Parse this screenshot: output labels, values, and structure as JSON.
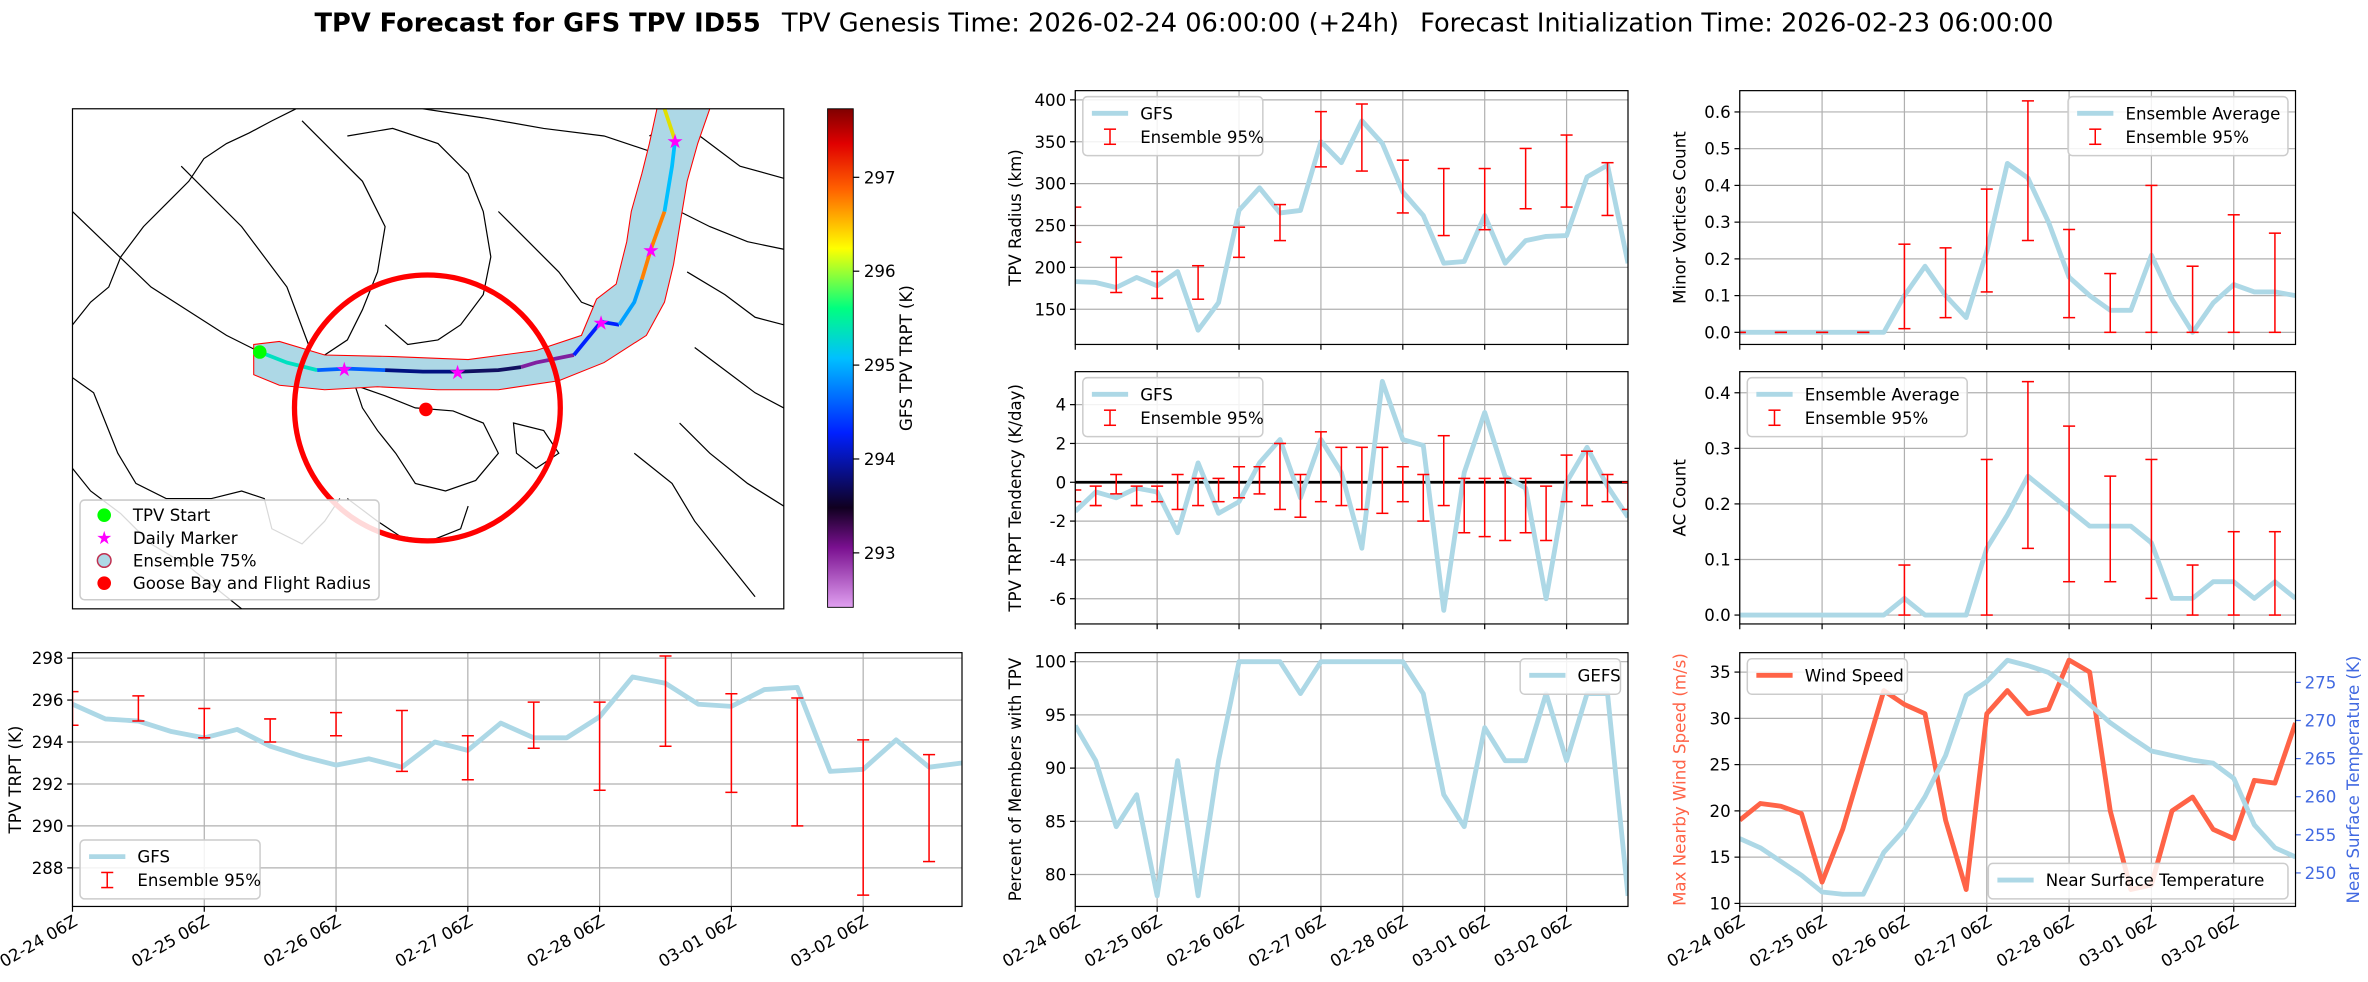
{
  "title": "TPV Forecast for GFS TPV ID55",
  "subtitle": "TPV Genesis Time: 2026-02-24 06:00:00 (+24h)",
  "subtitle2": "Forecast Initialization Time: 2026-02-23 06:00:00",
  "chart_data": [
    {
      "type": "map",
      "legend": [
        {
          "label": "TPV Start",
          "color": "#00ff00"
        },
        {
          "label": "Daily Marker",
          "color": "#ff00ff"
        },
        {
          "label": "Ensemble 75%",
          "color": "#add8e6"
        },
        {
          "label": "Goose Bay and Flight Radius",
          "color": "#ff0000"
        }
      ],
      "colorbar": {
        "label": "GFS TPV TRPT (K)",
        "lim": [
          292.42,
          297.73
        ],
        "ticks": [
          293,
          294,
          295,
          296,
          297
        ]
      }
    },
    {
      "type": "line",
      "ylabel": "TPV Radius (km)",
      "ylim": [
        108,
        411
      ],
      "yticks": [
        150,
        200,
        250,
        300,
        350,
        400
      ],
      "grid": true,
      "legend": "upper left",
      "categories": [
        null,
        null,
        null,
        null,
        null,
        null,
        null,
        null,
        null,
        null,
        null,
        null,
        null,
        null,
        null,
        null,
        null,
        null,
        null,
        null,
        null,
        null,
        null,
        null,
        null,
        null,
        null,
        null
      ],
      "series": [
        {
          "name": "GFS",
          "color": "#add8e6",
          "values": [
            183,
            182,
            176,
            188,
            178,
            195,
            125,
            158,
            268,
            295,
            265,
            268,
            350,
            325,
            375,
            348,
            290,
            262,
            205,
            207,
            262,
            205,
            232,
            237,
            238,
            308,
            322,
            205
          ]
        },
        {
          "name": "Ensemble 95%",
          "color": "#ff0000",
          "errorbar": true,
          "lower": [
            230,
            null,
            170,
            null,
            163,
            null,
            162,
            null,
            212,
            null,
            232,
            null,
            320,
            null,
            315,
            null,
            265,
            null,
            238,
            null,
            245,
            null,
            270,
            null,
            272,
            null,
            262,
            null
          ],
          "upper": [
            272,
            null,
            212,
            null,
            195,
            null,
            202,
            null,
            248,
            null,
            275,
            null,
            386,
            null,
            395,
            null,
            328,
            null,
            318,
            null,
            318,
            null,
            342,
            null,
            358,
            null,
            325,
            null
          ]
        }
      ]
    },
    {
      "type": "line",
      "ylabel": "TPV TRPT Tendency (K/day)",
      "ylim": [
        -7.3,
        5.7
      ],
      "yticks": [
        -6,
        -4,
        -2,
        0,
        2,
        4
      ],
      "grid": true,
      "legend": "upper left",
      "hline": 0,
      "categories": [
        null,
        null,
        null,
        null,
        null,
        null,
        null,
        null,
        null,
        null,
        null,
        null,
        null,
        null,
        null,
        null,
        null,
        null,
        null,
        null,
        null,
        null,
        null,
        null,
        null,
        null,
        null,
        null
      ],
      "series": [
        {
          "name": "GFS",
          "color": "#add8e6",
          "values": [
            -1.5,
            -0.5,
            -0.8,
            -0.3,
            -0.5,
            -2.6,
            1.0,
            -1.6,
            -1.0,
            1.0,
            2.2,
            -0.8,
            2.2,
            0.5,
            -3.4,
            5.2,
            2.2,
            1.9,
            -6.6,
            0.5,
            3.6,
            0.3,
            -0.3,
            -6.0,
            0.0,
            1.8,
            -0.2,
            -1.8
          ]
        },
        {
          "name": "Ensemble 95%",
          "color": "#ff0000",
          "errorbar": true,
          "lower": [
            -1.0,
            -1.2,
            -0.6,
            -1.2,
            -1.0,
            -1.4,
            -1.2,
            -1.0,
            -0.8,
            -0.6,
            -1.4,
            -1.8,
            -1.0,
            -1.2,
            -1.4,
            -1.6,
            -1.0,
            -2.0,
            -1.2,
            -2.6,
            -2.8,
            -3.0,
            -2.6,
            -3.0,
            -1.0,
            -1.2,
            -1.0,
            -1.4
          ],
          "upper": [
            -0.4,
            -0.2,
            0.4,
            -0.2,
            -0.2,
            0.4,
            0.2,
            0.2,
            0.8,
            0.8,
            2.0,
            0.4,
            2.6,
            1.8,
            1.8,
            1.8,
            0.8,
            0.4,
            2.4,
            0.2,
            0.2,
            0.2,
            0.2,
            -0.2,
            1.4,
            1.6,
            0.4,
            0.0
          ]
        }
      ]
    },
    {
      "type": "line",
      "ylabel": "Minor Vortices Count",
      "ylim": [
        -0.033,
        0.658
      ],
      "yticks": [
        {
          "value": 0,
          "label": "0.0"
        },
        0.1,
        0.2,
        0.3,
        0.4,
        0.5,
        0.6
      ],
      "grid": true,
      "legend": "upper right",
      "categories": [
        null,
        null,
        null,
        null,
        null,
        null,
        null,
        null,
        null,
        null,
        null,
        null,
        null,
        null,
        null,
        null,
        null,
        null,
        null,
        null,
        null,
        null,
        null,
        null,
        null,
        null,
        null,
        null
      ],
      "series": [
        {
          "name": "Ensemble Average",
          "color": "#add8e6",
          "values": [
            0,
            0,
            0,
            0,
            0,
            0,
            0,
            0,
            0.1,
            0.18,
            0.1,
            0.04,
            0.22,
            0.46,
            0.42,
            0.3,
            0.15,
            0.1,
            0.06,
            0.06,
            0.21,
            0.09,
            0,
            0.08,
            0.13,
            0.11,
            0.11,
            0.1
          ]
        },
        {
          "name": "Ensemble 95%",
          "color": "#ff0000",
          "errorbar": true,
          "lower": [
            0,
            null,
            0,
            null,
            0,
            null,
            0,
            null,
            0.01,
            null,
            0.04,
            null,
            0.11,
            null,
            0.25,
            null,
            0.04,
            null,
            0,
            null,
            0,
            null,
            0,
            null,
            0,
            null,
            0,
            null
          ],
          "upper": [
            0,
            null,
            0,
            null,
            0,
            null,
            0,
            null,
            0.24,
            null,
            0.23,
            null,
            0.39,
            null,
            0.63,
            null,
            0.28,
            null,
            0.16,
            null,
            0.4,
            null,
            0.18,
            null,
            0.32,
            null,
            0.27,
            null
          ]
        }
      ]
    },
    {
      "type": "line",
      "ylabel": "AC Count",
      "ylim": [
        -0.016,
        0.438
      ],
      "yticks": [
        {
          "value": 0,
          "label": "0.0"
        },
        0.1,
        0.2,
        0.3,
        0.4
      ],
      "grid": true,
      "legend": "upper left",
      "categories": [
        null,
        null,
        null,
        null,
        null,
        null,
        null,
        null,
        null,
        null,
        null,
        null,
        null,
        null,
        null,
        null,
        null,
        null,
        null,
        null,
        null,
        null,
        null,
        null,
        null,
        null,
        null,
        null
      ],
      "series": [
        {
          "name": "Ensemble Average",
          "color": "#add8e6",
          "values": [
            0,
            0,
            0,
            0,
            0,
            0,
            0,
            0,
            0.03,
            0,
            0,
            0,
            0.12,
            0.18,
            0.25,
            0.22,
            0.19,
            0.16,
            0.16,
            0.16,
            0.13,
            0.03,
            0.03,
            0.06,
            0.06,
            0.03,
            0.06,
            0.03
          ]
        },
        {
          "name": "Ensemble 95%",
          "color": "#ff0000",
          "errorbar": true,
          "lower": [
            null,
            null,
            null,
            null,
            null,
            null,
            null,
            null,
            0,
            null,
            null,
            null,
            0,
            null,
            0.12,
            null,
            0.06,
            null,
            0.06,
            null,
            0.03,
            null,
            0,
            null,
            0,
            null,
            0,
            null
          ],
          "upper": [
            null,
            null,
            null,
            null,
            null,
            null,
            null,
            null,
            0.09,
            null,
            null,
            null,
            0.28,
            null,
            0.42,
            null,
            0.34,
            null,
            0.25,
            null,
            0.28,
            null,
            0.09,
            null,
            0.15,
            null,
            0.15,
            null
          ]
        }
      ]
    },
    {
      "type": "line",
      "ylabel": "TPV TRPT (K)",
      "ylim": [
        286.16,
        298.26
      ],
      "yticks": [
        288,
        290,
        292,
        294,
        296,
        298
      ],
      "grid": true,
      "legend": "lower left",
      "categories": [
        "02-24 06Z",
        null,
        null,
        null,
        "02-25 06Z",
        null,
        null,
        null,
        "02-26 06Z",
        null,
        null,
        null,
        "02-27 06Z",
        null,
        null,
        null,
        "02-28 06Z",
        null,
        null,
        null,
        "03-01 06Z",
        null,
        null,
        null,
        "03-02 06Z",
        null,
        null,
        null
      ],
      "series": [
        {
          "name": "GFS",
          "color": "#add8e6",
          "values": [
            295.8,
            295.1,
            295.0,
            294.5,
            294.2,
            294.6,
            293.8,
            293.3,
            292.9,
            293.2,
            292.8,
            294.0,
            293.6,
            294.9,
            294.2,
            294.2,
            295.2,
            297.1,
            296.8,
            295.8,
            295.7,
            296.5,
            296.6,
            292.6,
            292.7,
            294.1,
            292.8,
            293.0
          ]
        },
        {
          "name": "Ensemble 95%",
          "color": "#ff0000",
          "errorbar": true,
          "lower": [
            294.8,
            null,
            295.0,
            null,
            294.2,
            null,
            294.0,
            null,
            294.3,
            null,
            292.6,
            null,
            292.2,
            null,
            293.7,
            null,
            291.7,
            null,
            293.8,
            null,
            291.6,
            null,
            290.0,
            null,
            286.7,
            null,
            288.3,
            null
          ],
          "upper": [
            296.4,
            null,
            296.2,
            null,
            295.6,
            null,
            295.1,
            null,
            295.4,
            null,
            295.5,
            null,
            294.3,
            null,
            295.9,
            null,
            295.9,
            null,
            298.1,
            null,
            296.3,
            null,
            296.1,
            null,
            294.1,
            null,
            293.4,
            null
          ]
        }
      ]
    },
    {
      "type": "line",
      "ylabel": "Percent of Members with TPV",
      "ylim": [
        77.0,
        100.85
      ],
      "yticks": [
        80,
        85,
        90,
        95,
        100
      ],
      "grid": true,
      "legend": "upper right",
      "categories": [
        "02-24 06Z",
        null,
        null,
        null,
        "02-25 06Z",
        null,
        null,
        null,
        "02-26 06Z",
        null,
        null,
        null,
        "02-27 06Z",
        null,
        null,
        null,
        "02-28 06Z",
        null,
        null,
        null,
        "03-01 06Z",
        null,
        null,
        null,
        "03-02 06Z",
        null,
        null,
        null
      ],
      "series": [
        {
          "name": "GEFS",
          "color": "#add8e6",
          "values": [
            94,
            90.7,
            84.5,
            87.5,
            78,
            90.7,
            78,
            90.7,
            100,
            100,
            100,
            97,
            100,
            100,
            100,
            100,
            100,
            97,
            87.5,
            84.5,
            93.8,
            90.7,
            90.7,
            97,
            90.7,
            97,
            97,
            78
          ]
        }
      ]
    },
    {
      "type": "line",
      "ylabel": "Max Nearby Wind Speed (m/s)",
      "ylabel_color": "#ff6347",
      "y2label": "Near Surface Temperature (K)",
      "y2label_color": "#4169e1",
      "ylim": [
        9.67,
        37.1
      ],
      "yticks": [
        10,
        15,
        20,
        25,
        30,
        35
      ],
      "y2lim": [
        245.6,
        278.9
      ],
      "y2ticks": [
        250,
        255,
        260,
        265,
        270,
        275
      ],
      "grid": true,
      "categories": [
        "02-24 06Z",
        null,
        null,
        null,
        "02-25 06Z",
        null,
        null,
        null,
        "02-26 06Z",
        null,
        null,
        null,
        "02-27 06Z",
        null,
        null,
        null,
        "02-28 06Z",
        null,
        null,
        null,
        "03-01 06Z",
        null,
        null,
        null,
        "03-02 06Z",
        null,
        null,
        null
      ],
      "series": [
        {
          "name": "Wind Speed",
          "color": "#ff6347",
          "legend": "upper left",
          "values": [
            19,
            20.8,
            20.5,
            19.7,
            12.3,
            18,
            25.5,
            33,
            31.5,
            30.5,
            19,
            11.5,
            30.5,
            33,
            30.5,
            31,
            36.3,
            35,
            20,
            11.5,
            12,
            20,
            21.5,
            18,
            17,
            23.3,
            23,
            29.5
          ]
        },
        {
          "name": "Near Surface Temperature",
          "color": "#add8e6",
          "axis": "y2",
          "legend": "lower right",
          "values": [
            254.5,
            253.3,
            251.5,
            249.7,
            247.5,
            247.2,
            247.2,
            252.7,
            255.7,
            260.0,
            265.4,
            273.3,
            275.1,
            277.9,
            277.2,
            276.3,
            274.5,
            272.1,
            269.7,
            267.8,
            266.0,
            265.4,
            264.8,
            264.4,
            262.4,
            256.3,
            253.3,
            252.1
          ]
        }
      ]
    }
  ]
}
